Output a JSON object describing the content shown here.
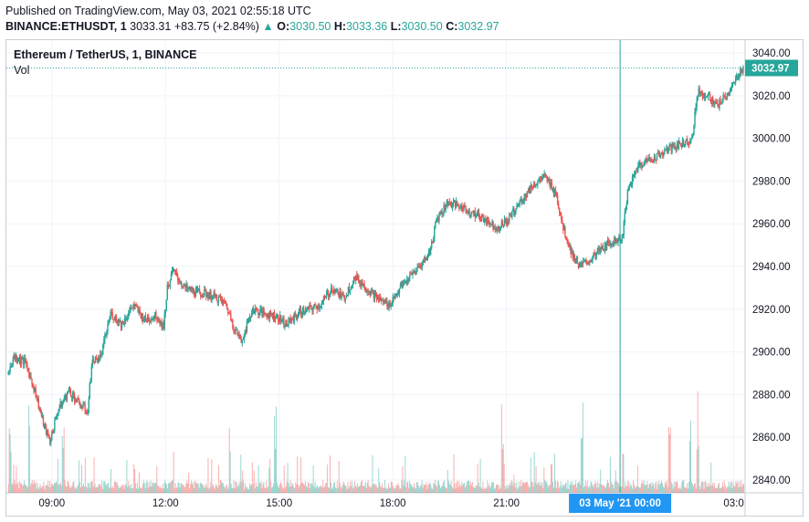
{
  "header": {
    "published": "Published on TradingView.com, May 03, 2021 02:55:18 UTC",
    "symbol_line_label": "BINANCE:ETHUSDT, 1",
    "last_price": "3033.31",
    "change": "+83.75 (+2.84%)",
    "change_arrow": "▲",
    "o_label": "O:",
    "o_value": "3030.50",
    "h_label": "H:",
    "h_value": "3033.36",
    "l_label": "L:",
    "l_value": "3030.50",
    "c_label": "C:",
    "c_value": "3032.97"
  },
  "legend": {
    "title": "Ethereum / TetherUS, 1, BINANCE",
    "volume": "Vol"
  },
  "colors": {
    "up": "#26a69a",
    "down": "#ef5350",
    "grid": "#f0f3fa",
    "crosshair": "#26a69a",
    "price_tag_bg": "#26a69a",
    "time_tag_bg": "#2196f3"
  },
  "chart_data": {
    "type": "candlestick",
    "symbol": "ETHUSDT",
    "interval": "1",
    "y_ticks": [
      "2840.00",
      "2860.00",
      "2880.00",
      "2900.00",
      "2920.00",
      "2940.00",
      "2960.00",
      "2980.00",
      "3000.00",
      "3020.00",
      "3040.00"
    ],
    "ylim": [
      2834,
      3046
    ],
    "x_ticks": [
      "09:00",
      "12:00",
      "15:00",
      "18:00",
      "21:00",
      "03 May '21  00:00",
      "03:0"
    ],
    "x_tick_hours": [
      9,
      12,
      15,
      18,
      21,
      24,
      27
    ],
    "xlim_hours": [
      7.8,
      27.3
    ],
    "current_price": "3032.97",
    "crosshair_label": "03 May '21  00:00",
    "crosshair_hour": 24,
    "close_path": [
      [
        7.85,
        2890
      ],
      [
        8.0,
        2898
      ],
      [
        8.3,
        2895
      ],
      [
        8.55,
        2882
      ],
      [
        8.8,
        2865
      ],
      [
        8.95,
        2858
      ],
      [
        9.15,
        2872
      ],
      [
        9.45,
        2882
      ],
      [
        9.7,
        2876
      ],
      [
        9.95,
        2872
      ],
      [
        10.05,
        2895
      ],
      [
        10.3,
        2898
      ],
      [
        10.55,
        2918
      ],
      [
        10.85,
        2913
      ],
      [
        11.15,
        2922
      ],
      [
        11.45,
        2915
      ],
      [
        11.75,
        2917
      ],
      [
        11.95,
        2912
      ],
      [
        12.05,
        2930
      ],
      [
        12.2,
        2938
      ],
      [
        12.5,
        2930
      ],
      [
        12.8,
        2928
      ],
      [
        13.1,
        2927
      ],
      [
        13.4,
        2925
      ],
      [
        13.6,
        2922
      ],
      [
        13.8,
        2912
      ],
      [
        14.0,
        2905
      ],
      [
        14.3,
        2920
      ],
      [
        14.6,
        2918
      ],
      [
        14.9,
        2917
      ],
      [
        15.2,
        2913
      ],
      [
        15.5,
        2918
      ],
      [
        15.8,
        2920
      ],
      [
        16.1,
        2922
      ],
      [
        16.4,
        2930
      ],
      [
        16.7,
        2925
      ],
      [
        17.0,
        2935
      ],
      [
        17.3,
        2930
      ],
      [
        17.6,
        2925
      ],
      [
        17.9,
        2922
      ],
      [
        18.2,
        2930
      ],
      [
        18.5,
        2936
      ],
      [
        18.8,
        2942
      ],
      [
        19.0,
        2948
      ],
      [
        19.15,
        2962
      ],
      [
        19.45,
        2970
      ],
      [
        19.8,
        2968
      ],
      [
        20.1,
        2965
      ],
      [
        20.45,
        2962
      ],
      [
        20.75,
        2958
      ],
      [
        21.05,
        2962
      ],
      [
        21.35,
        2970
      ],
      [
        21.7,
        2978
      ],
      [
        22.0,
        2982
      ],
      [
        22.3,
        2975
      ],
      [
        22.5,
        2958
      ],
      [
        22.75,
        2945
      ],
      [
        22.95,
        2940
      ],
      [
        23.2,
        2943
      ],
      [
        23.5,
        2948
      ],
      [
        23.8,
        2952
      ],
      [
        24.05,
        2953
      ],
      [
        24.2,
        2975
      ],
      [
        24.5,
        2988
      ],
      [
        24.8,
        2990
      ],
      [
        25.1,
        2993
      ],
      [
        25.4,
        2996
      ],
      [
        25.7,
        2998
      ],
      [
        25.9,
        3000
      ],
      [
        26.05,
        3022
      ],
      [
        26.3,
        3020
      ],
      [
        26.55,
        3015
      ],
      [
        26.8,
        3020
      ],
      [
        27.0,
        3025
      ],
      [
        27.15,
        3031
      ],
      [
        27.25,
        3033
      ]
    ],
    "volume_spikes_hours": [
      7.9,
      8.4,
      9.3,
      13.7,
      14.9,
      20.9,
      23.0,
      25.3,
      25.85,
      26.05
    ]
  }
}
